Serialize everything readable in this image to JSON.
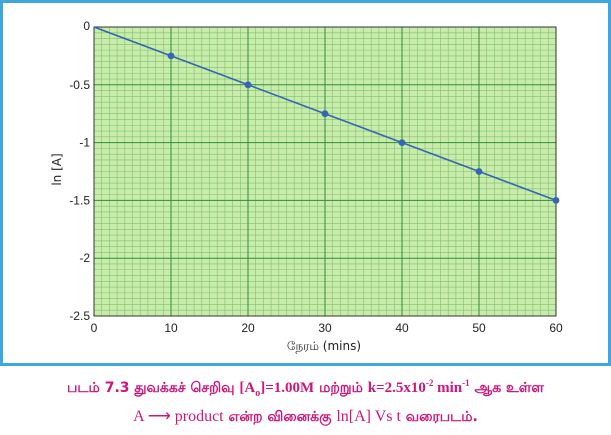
{
  "chart_data": {
    "type": "line",
    "x": [
      0,
      10,
      20,
      30,
      40,
      50,
      60
    ],
    "series": [
      {
        "values": [
          0,
          -0.25,
          -0.5,
          -0.75,
          -1.0,
          -1.25,
          -1.5
        ]
      }
    ],
    "marked_points": [
      10,
      20,
      30,
      40,
      50,
      60
    ],
    "xlabel": "நேரம் (mins)",
    "ylabel": "ln [A]",
    "xlim": [
      0,
      60
    ],
    "ylim": [
      -2.5,
      0
    ],
    "x_ticks": [
      "0",
      "10",
      "20",
      "30",
      "40",
      "50",
      "60"
    ],
    "y_ticks": [
      "0",
      "-0.5",
      "-1",
      "-1.5",
      "-2",
      "-2.5"
    ],
    "grid": true,
    "colors": {
      "plot_background": "#c9ebac",
      "minor_grid": "#7fc26a",
      "major_grid": "#2f8f3a",
      "line": "#3566b3",
      "frame": "#3fa7df",
      "caption": "#d0157a"
    }
  },
  "caption": {
    "line1_prefix": "படம் 7.3 துவக்கச் செறிவு ",
    "line1_A0_open": "[A",
    "line1_A0_sub": "o",
    "line1_A0_close": "]=1.00M",
    "line1_mid": " மற்றும் ",
    "line1_k": "k=2.5x10",
    "line1_k_exp": "-2",
    "line1_unit": " min",
    "line1_unit_exp": "-1",
    "line1_suffix": " ஆக உள்ள",
    "line2_reaction": "A ⟶ product",
    "line2_suffix": " என்ற வினைக்கு ",
    "line2_plot": "ln[A] Vs t",
    "line2_end": " வரைபடம்."
  }
}
